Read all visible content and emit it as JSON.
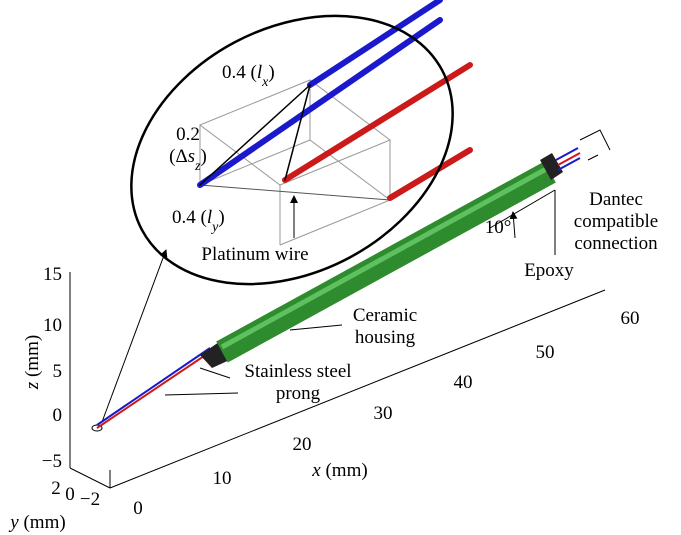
{
  "labels": {
    "lx": [
      [
        {
          "text": "0.4 ("
        },
        {
          "text": "l",
          "style": "italic"
        },
        {
          "text": "x",
          "style": "sub"
        },
        {
          "text": ")"
        }
      ]
    ],
    "dsz": [
      [
        {
          "text": "0.2"
        }
      ],
      [
        {
          "text": "(Δ"
        },
        {
          "text": "s",
          "style": "italic"
        },
        {
          "text": "z",
          "style": "sub"
        },
        {
          "text": ")"
        }
      ]
    ],
    "ly": [
      [
        {
          "text": "0.4 ("
        },
        {
          "text": "l",
          "style": "italic"
        },
        {
          "text": "y",
          "style": "sub"
        },
        {
          "text": ")"
        }
      ]
    ],
    "platinum": [
      [
        {
          "text": "Platinum wire"
        }
      ]
    ],
    "ceramic": [
      [
        {
          "text": "Ceramic"
        }
      ],
      [
        {
          "text": "housing"
        }
      ]
    ],
    "prong": [
      [
        {
          "text": "Stainless steel"
        }
      ],
      [
        {
          "text": "prong"
        }
      ]
    ],
    "dantec": [
      [
        {
          "text": "Dantec"
        }
      ],
      [
        {
          "text": "compatible"
        }
      ],
      [
        {
          "text": "connection"
        }
      ]
    ],
    "epoxy": [
      [
        {
          "text": "Epoxy"
        }
      ]
    ],
    "angle": [
      [
        {
          "text": "10°"
        }
      ]
    ],
    "z_axis": [
      [
        {
          "text": "z",
          "style": "italic"
        },
        {
          "text": " (mm)"
        }
      ]
    ],
    "x_axis": [
      [
        {
          "text": "x",
          "style": "italic"
        },
        {
          "text": " (mm)"
        }
      ]
    ],
    "y_axis": [
      [
        {
          "text": "y",
          "style": "italic"
        },
        {
          "text": " (mm)"
        }
      ]
    ]
  },
  "z_ticks": [
    "15",
    "10",
    "5",
    "0",
    "−5"
  ],
  "x_ticks": [
    "0",
    "10",
    "20",
    "30",
    "40",
    "50",
    "60"
  ],
  "y_ticks": [
    "2",
    "0",
    "−2"
  ]
}
